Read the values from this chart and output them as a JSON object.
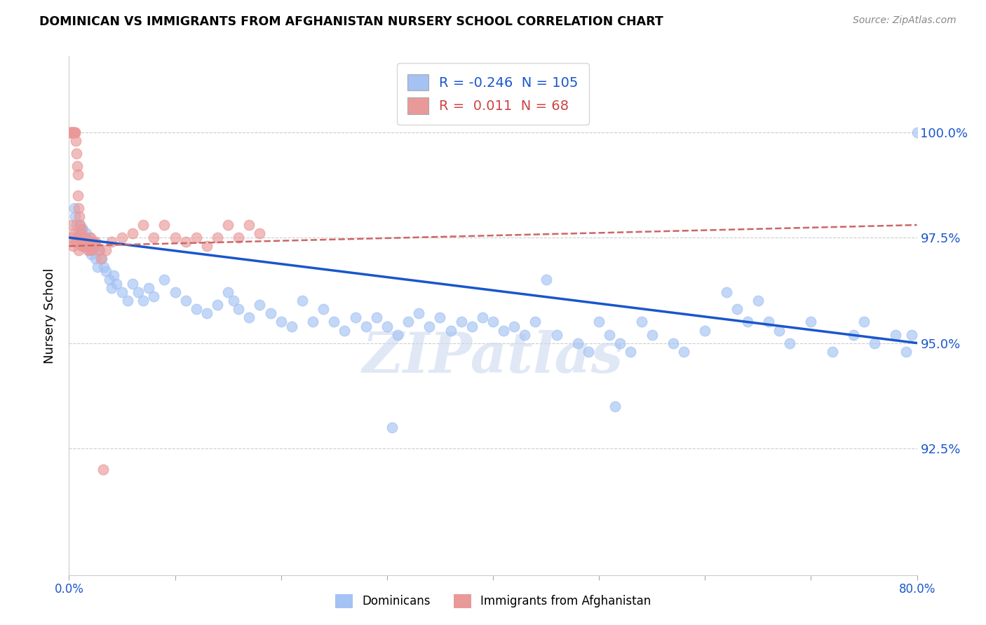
{
  "title": "DOMINICAN VS IMMIGRANTS FROM AFGHANISTAN NURSERY SCHOOL CORRELATION CHART",
  "source": "Source: ZipAtlas.com",
  "ylabel": "Nursery School",
  "xmin": 0.0,
  "xmax": 80.0,
  "ymin": 89.5,
  "ymax": 101.8,
  "blue_R": -0.246,
  "blue_N": 105,
  "pink_R": 0.011,
  "pink_N": 68,
  "blue_color": "#a4c2f4",
  "pink_color": "#ea9999",
  "blue_line_color": "#1a56cc",
  "pink_line_color": "#cc6666",
  "watermark": "ZIPatlas",
  "legend_label_blue": "Dominicans",
  "legend_label_pink": "Immigrants from Afghanistan",
  "blue_line_y0": 97.5,
  "blue_line_y1": 95.0,
  "pink_line_y0": 97.3,
  "pink_line_y1": 97.8,
  "blue_scatter_x": [
    0.5,
    0.6,
    0.7,
    0.8,
    0.9,
    1.0,
    1.0,
    1.1,
    1.2,
    1.3,
    1.4,
    1.5,
    1.6,
    1.7,
    1.8,
    1.9,
    2.0,
    2.1,
    2.2,
    2.3,
    2.5,
    2.7,
    2.9,
    3.1,
    3.3,
    3.5,
    3.8,
    4.0,
    4.2,
    4.5,
    5.0,
    5.5,
    6.0,
    6.5,
    7.0,
    7.5,
    8.0,
    9.0,
    10.0,
    11.0,
    12.0,
    13.0,
    14.0,
    15.0,
    15.5,
    16.0,
    17.0,
    18.0,
    19.0,
    20.0,
    21.0,
    22.0,
    23.0,
    24.0,
    25.0,
    26.0,
    27.0,
    28.0,
    29.0,
    30.0,
    31.0,
    32.0,
    33.0,
    34.0,
    35.0,
    36.0,
    37.0,
    38.0,
    39.0,
    40.0,
    41.0,
    42.0,
    43.0,
    44.0,
    45.0,
    46.0,
    48.0,
    49.0,
    50.0,
    51.0,
    52.0,
    53.0,
    54.0,
    55.0,
    57.0,
    58.0,
    60.0,
    62.0,
    63.0,
    64.0,
    65.0,
    66.0,
    67.0,
    68.0,
    70.0,
    72.0,
    74.0,
    75.0,
    76.0,
    78.0,
    79.0,
    79.5,
    80.0,
    51.5,
    30.5
  ],
  "blue_scatter_y": [
    98.2,
    98.0,
    97.8,
    97.6,
    97.5,
    97.5,
    97.8,
    97.6,
    97.4,
    97.7,
    97.5,
    97.3,
    97.6,
    97.4,
    97.2,
    97.5,
    97.3,
    97.1,
    97.4,
    97.2,
    97.0,
    96.8,
    97.2,
    97.0,
    96.8,
    96.7,
    96.5,
    96.3,
    96.6,
    96.4,
    96.2,
    96.0,
    96.4,
    96.2,
    96.0,
    96.3,
    96.1,
    96.5,
    96.2,
    96.0,
    95.8,
    95.7,
    95.9,
    96.2,
    96.0,
    95.8,
    95.6,
    95.9,
    95.7,
    95.5,
    95.4,
    96.0,
    95.5,
    95.8,
    95.5,
    95.3,
    95.6,
    95.4,
    95.6,
    95.4,
    95.2,
    95.5,
    95.7,
    95.4,
    95.6,
    95.3,
    95.5,
    95.4,
    95.6,
    95.5,
    95.3,
    95.4,
    95.2,
    95.5,
    96.5,
    95.2,
    95.0,
    94.8,
    95.5,
    95.2,
    95.0,
    94.8,
    95.5,
    95.2,
    95.0,
    94.8,
    95.3,
    96.2,
    95.8,
    95.5,
    96.0,
    95.5,
    95.3,
    95.0,
    95.5,
    94.8,
    95.2,
    95.5,
    95.0,
    95.2,
    94.8,
    95.2,
    100.0,
    93.5,
    93.0
  ],
  "pink_scatter_x": [
    0.1,
    0.15,
    0.2,
    0.25,
    0.3,
    0.35,
    0.4,
    0.45,
    0.5,
    0.55,
    0.6,
    0.65,
    0.7,
    0.75,
    0.8,
    0.85,
    0.9,
    0.95,
    1.0,
    1.05,
    1.1,
    1.15,
    1.2,
    1.25,
    1.3,
    1.4,
    1.5,
    1.6,
    1.7,
    1.8,
    1.9,
    2.0,
    2.2,
    2.5,
    2.8,
    3.0,
    3.5,
    4.0,
    5.0,
    6.0,
    7.0,
    8.0,
    9.0,
    10.0,
    11.0,
    12.0,
    13.0,
    14.0,
    15.0,
    16.0,
    17.0,
    18.0,
    0.3,
    0.5,
    0.7,
    0.9,
    1.1,
    1.3,
    1.5,
    1.7,
    1.9,
    2.1,
    2.3,
    2.5,
    0.2,
    0.4,
    0.6,
    3.2
  ],
  "pink_scatter_y": [
    100.0,
    100.0,
    100.0,
    100.0,
    100.0,
    100.0,
    100.0,
    100.0,
    100.0,
    100.0,
    100.0,
    99.8,
    99.5,
    99.2,
    99.0,
    98.5,
    98.2,
    98.0,
    97.8,
    97.6,
    97.5,
    97.7,
    97.5,
    97.3,
    97.5,
    97.3,
    97.5,
    97.3,
    97.4,
    97.2,
    97.3,
    97.5,
    97.3,
    97.4,
    97.2,
    97.0,
    97.2,
    97.4,
    97.5,
    97.6,
    97.8,
    97.5,
    97.8,
    97.5,
    97.4,
    97.5,
    97.3,
    97.5,
    97.8,
    97.5,
    97.8,
    97.6,
    97.8,
    97.6,
    97.4,
    97.2,
    97.5,
    97.3,
    97.5,
    97.3,
    97.4,
    97.2,
    97.4,
    97.3,
    97.5,
    97.3,
    97.4,
    92.0
  ]
}
